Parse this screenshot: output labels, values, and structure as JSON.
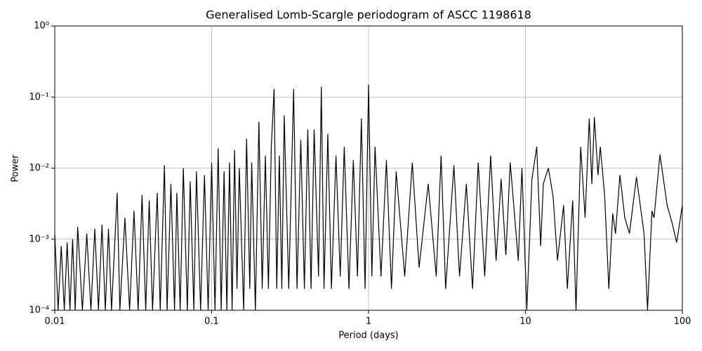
{
  "chart_data": {
    "type": "line",
    "title": "Generalised Lomb-Scargle periodogram of ASCC 1198618",
    "xlabel": "Period (days)",
    "ylabel": "Power",
    "xscale": "log",
    "yscale": "log",
    "grid": true,
    "color": "#000000",
    "xlim": [
      0.01,
      100
    ],
    "ylim": [
      0.0001,
      1
    ],
    "xticks": [
      0.01,
      0.1,
      1,
      10,
      100
    ],
    "yticks": [
      {
        "value": 0.0001,
        "label": "10⁻⁴"
      },
      {
        "value": 0.001,
        "label": "10⁻³"
      },
      {
        "value": 0.01,
        "label": "10⁻²"
      },
      {
        "value": 0.1,
        "label": "10⁻¹"
      },
      {
        "value": 1,
        "label": "10⁰"
      }
    ],
    "x": [
      0.01,
      0.0105,
      0.011,
      0.0115,
      0.012,
      0.0125,
      0.013,
      0.0135,
      0.014,
      0.015,
      0.016,
      0.017,
      0.018,
      0.019,
      0.02,
      0.021,
      0.022,
      0.023,
      0.025,
      0.026,
      0.028,
      0.03,
      0.032,
      0.034,
      0.036,
      0.038,
      0.04,
      0.042,
      0.045,
      0.047,
      0.05,
      0.052,
      0.055,
      0.058,
      0.06,
      0.063,
      0.066,
      0.07,
      0.073,
      0.077,
      0.08,
      0.085,
      0.09,
      0.095,
      0.1,
      0.105,
      0.11,
      0.115,
      0.12,
      0.125,
      0.13,
      0.135,
      0.14,
      0.145,
      0.15,
      0.16,
      0.167,
      0.175,
      0.18,
      0.19,
      0.2,
      0.21,
      0.22,
      0.23,
      0.24,
      0.25,
      0.26,
      0.27,
      0.28,
      0.29,
      0.31,
      0.333,
      0.35,
      0.37,
      0.39,
      0.41,
      0.43,
      0.45,
      0.48,
      0.5,
      0.52,
      0.55,
      0.58,
      0.62,
      0.66,
      0.7,
      0.75,
      0.8,
      0.85,
      0.9,
      0.95,
      1.0,
      1.05,
      1.1,
      1.2,
      1.3,
      1.4,
      1.5,
      1.7,
      1.9,
      2.1,
      2.4,
      2.7,
      2.9,
      3.1,
      3.5,
      3.8,
      4.2,
      4.6,
      5.0,
      5.5,
      6.0,
      6.5,
      7.0,
      7.5,
      8.0,
      9.0,
      9.5,
      10.2,
      11,
      11.8,
      12.5,
      13,
      14,
      15,
      16,
      17.5,
      18.5,
      20,
      21,
      22.5,
      24,
      25.5,
      26.5,
      27.5,
      29,
      30,
      32,
      34,
      36,
      37.5,
      40,
      43,
      46,
      51,
      57,
      60,
      64,
      66,
      72,
      80,
      86,
      92,
      100
    ],
    "values": [
      0.0012,
      0.0001,
      0.0008,
      0.0001,
      0.0009,
      0.0001,
      0.001,
      0.0001,
      0.0015,
      0.0001,
      0.0012,
      0.0001,
      0.0014,
      0.0001,
      0.0016,
      0.0001,
      0.0014,
      0.0001,
      0.0045,
      0.0001,
      0.002,
      0.0001,
      0.0025,
      0.0001,
      0.0042,
      0.0001,
      0.0035,
      0.0001,
      0.0045,
      0.0001,
      0.011,
      0.0001,
      0.006,
      0.0001,
      0.0045,
      0.0001,
      0.01,
      0.0001,
      0.0065,
      0.0001,
      0.009,
      0.0001,
      0.008,
      0.0001,
      0.012,
      0.0001,
      0.019,
      0.0001,
      0.009,
      0.0001,
      0.012,
      0.0001,
      0.018,
      0.0002,
      0.01,
      0.0001,
      0.026,
      0.0002,
      0.012,
      0.0001,
      0.045,
      0.0002,
      0.015,
      0.0002,
      0.02,
      0.13,
      0.0002,
      0.015,
      0.0002,
      0.055,
      0.0002,
      0.13,
      0.0002,
      0.025,
      0.0002,
      0.035,
      0.0002,
      0.035,
      0.0003,
      0.14,
      0.0002,
      0.03,
      0.0002,
      0.015,
      0.0003,
      0.02,
      0.0002,
      0.013,
      0.0003,
      0.05,
      0.0002,
      0.15,
      0.0003,
      0.02,
      0.0003,
      0.013,
      0.0002,
      0.009,
      0.0003,
      0.012,
      0.0004,
      0.006,
      0.0003,
      0.015,
      0.0002,
      0.011,
      0.0003,
      0.006,
      0.0002,
      0.012,
      0.0003,
      0.015,
      0.0005,
      0.007,
      0.0006,
      0.012,
      0.0005,
      0.01,
      0.0001,
      0.007,
      0.02,
      0.0008,
      0.006,
      0.01,
      0.004,
      0.0005,
      0.003,
      0.0002,
      0.0035,
      0.0001,
      0.02,
      0.002,
      0.05,
      0.006,
      0.052,
      0.008,
      0.02,
      0.004,
      0.0002,
      0.0023,
      0.0012,
      0.008,
      0.002,
      0.0012,
      0.0075,
      0.0012,
      0.0001,
      0.0025,
      0.002,
      0.0155,
      0.003,
      0.0017,
      0.0009,
      0.003
    ]
  }
}
